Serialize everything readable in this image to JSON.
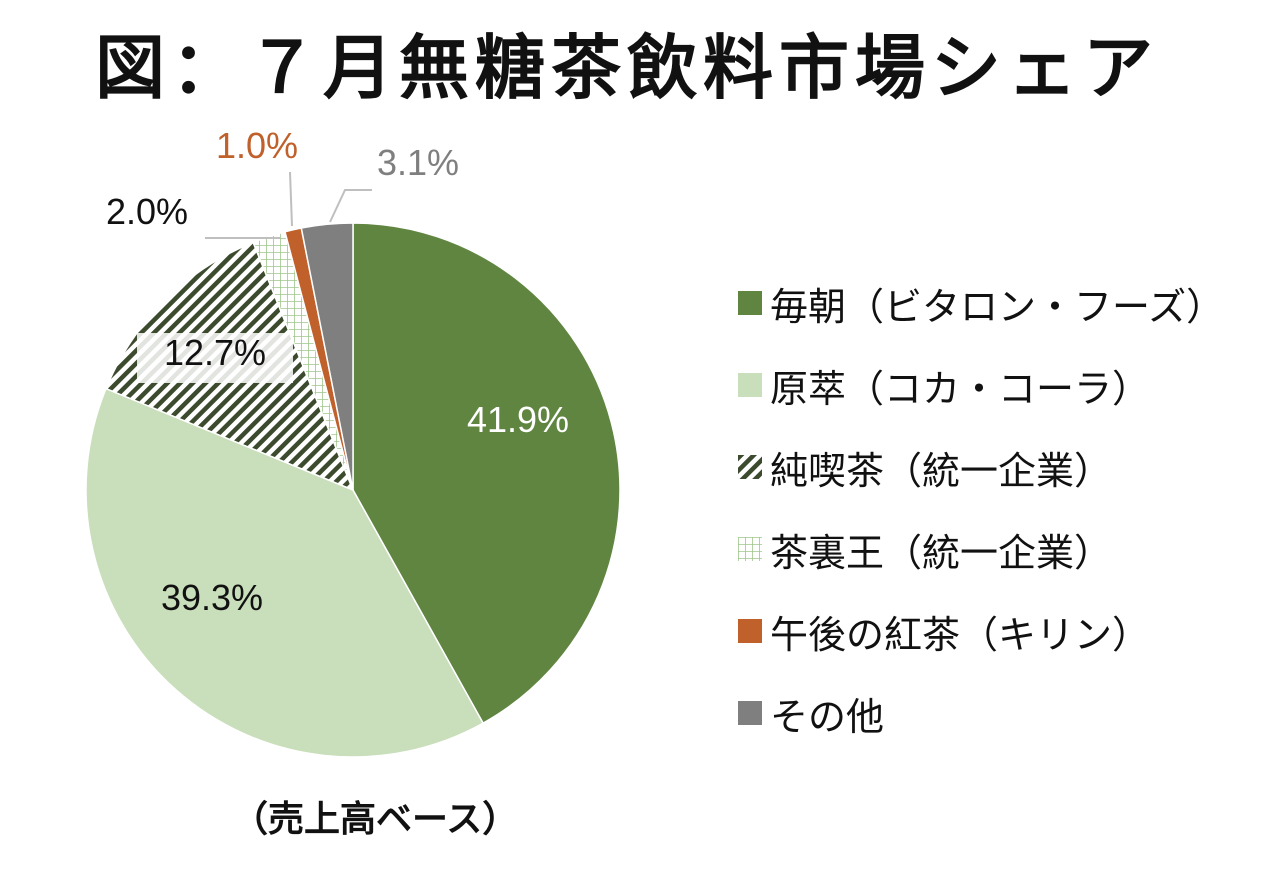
{
  "chart_data": {
    "type": "pie",
    "title": "図：７月無糖茶飲料市場シェア",
    "footnote": "（売上高ベース）",
    "legend_position": "right",
    "slices": [
      {
        "label": "毎朝（ビタロン・フーズ）",
        "value": 41.9,
        "display": "41.9%",
        "color": "#608541",
        "pattern": "solid"
      },
      {
        "label": "原萃（コカ・コーラ）",
        "value": 39.3,
        "display": "39.3%",
        "color": "#c9deba",
        "pattern": "solid"
      },
      {
        "label": "純喫茶（統一企業）",
        "value": 12.7,
        "display": "12.7%",
        "color": "#3c4a2e",
        "pattern": "diagonal-hatch"
      },
      {
        "label": "茶裏王（統一企業）",
        "value": 2.0,
        "display": "2.0%",
        "color": "#9ec58a",
        "pattern": "grid"
      },
      {
        "label": "午後の紅茶（キリン）",
        "value": 1.0,
        "display": "1.0%",
        "color": "#c0602a",
        "pattern": "solid"
      },
      {
        "label": "その他",
        "value": 3.1,
        "display": "3.1%",
        "color": "#7f7f7f",
        "pattern": "solid"
      }
    ]
  }
}
